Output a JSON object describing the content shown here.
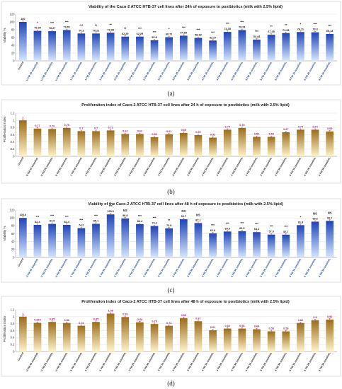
{
  "figure": {
    "panel_labels": [
      "(a)",
      "(b)",
      "(c)",
      "(d)"
    ]
  },
  "chart_data": [
    {
      "type": "bar",
      "title": "Viability of the Caco-2  ATCC HTB-37 cell lines after 24h of exposure to postbiotics (milk with 2.5% lipid)",
      "ylabel": "Viability %",
      "ylim": [
        0,
        120
      ],
      "yticks": [
        0,
        20,
        40,
        60,
        80,
        100,
        120
      ],
      "grid": true,
      "categories": [
        "Control",
        "U FM 10 mmol/mL",
        "U FM 20 mmol/mL",
        "U FM 50 mmol/mL",
        "1 FM 10 mmol/mL",
        "1 FM 20 mmol/mL",
        "1 FM 50 mmol/mL",
        "2 FM 10 mmol/mL",
        "2 FM 20 mmol/mL",
        "2 FM 50 mmol/mL",
        "3 FM 10 mmol/mL",
        "3 FM 20 mmol/mL",
        "3 FM 50 mmol/mL",
        "4 FM 10 mmol/mL",
        "4 FM 20 mmol/mL",
        "4 FM 50 mmol/mL",
        "5 FM 10 mmol/mL",
        "5 FM 20 mmol/mL",
        "5 FM 50 mmol/mL",
        "6 FM 10 mmol/mL",
        "6 FM 20 mmol/mL",
        "6 FM 50 mmol/mL"
      ],
      "value_labels": [
        "100",
        "76.99",
        "76.27",
        "79.01",
        "70.3",
        "70.21",
        "72.08",
        "62.29",
        "62.29",
        "52.8",
        "60.72",
        "64.65",
        "58.93",
        "52.27",
        "74.35",
        "78.91",
        "54.44",
        "67.05",
        "71.33",
        "74.11",
        "73.3",
        "69.14"
      ],
      "values": [
        100,
        76.99,
        76.27,
        79.01,
        70.3,
        70.21,
        72.08,
        62.29,
        62.29,
        52.8,
        60.72,
        64.65,
        58.93,
        52.27,
        74.35,
        78.91,
        54.44,
        67.05,
        71.33,
        74.11,
        73.3,
        69.14
      ],
      "significance": [
        "",
        "*",
        "***",
        "***",
        "***",
        "**",
        "**",
        "**",
        "***",
        "***",
        "*",
        "***",
        "***",
        "***",
        "***",
        "***",
        "***",
        "**",
        "**",
        "*",
        "***",
        "***"
      ],
      "colors": {
        "bar_top": "#1f45b8",
        "bar_bottom": "#d6e6ff",
        "label": "#1a1a1a",
        "tick": "#1a3d8f"
      }
    },
    {
      "type": "bar",
      "title": "Proliferation index of Caco-2 ATCC HTB-37 cell lines after 24 h of exposure to postbiotics  (milk with 2.5% lipid)",
      "ylabel": "Proliferation index",
      "ylim": [
        0,
        1.2
      ],
      "yticks": [
        0,
        0.2,
        0.4,
        0.6,
        0.8,
        1,
        1.2
      ],
      "grid": true,
      "categories": [
        "Control",
        "U FM 10 mmol/mL",
        "U FM 20 mmol/mL",
        "U FM 50 mmol/mL",
        "1 FM 10 mmol/mL",
        "1 FM 20 mmol/mL",
        "1 FM 50 mmol/mL",
        "2 FM 10 mmol/mL",
        "2 FM 20 mmol/mL",
        "2 FM 50 mmol/mL",
        "3 FM 10 mmol/mL",
        "3 FM 20 mmol/mL",
        "3 FM 50 mmol/mL",
        "4 FM 10 mmol/mL",
        "4 FM 20 mmol/mL",
        "4 FM 50 mmol/mL",
        "5 FM 10 mmol/mL",
        "5 FM 20 mmol/mL",
        "5 FM 50 mmol/mL",
        "6 FM 10 mmol/mL",
        "6 FM 20 mmol/mL",
        "6 FM 50 mmol/mL"
      ],
      "value_labels": [
        "1",
        "0.77",
        "0.76",
        "0.79",
        "0.7",
        "0.7",
        "0.72",
        "0.62",
        "0.62",
        "0.53",
        "0.61",
        "0.65",
        "0.59",
        "0.52",
        "0.74",
        "0.79",
        "0.54",
        "0.54",
        "0.67",
        "0.74",
        "0.74",
        "0.69"
      ],
      "values": [
        1,
        0.77,
        0.76,
        0.79,
        0.7,
        0.7,
        0.72,
        0.62,
        0.62,
        0.53,
        0.61,
        0.65,
        0.59,
        0.52,
        0.74,
        0.79,
        0.54,
        0.54,
        0.67,
        0.74,
        0.74,
        0.69
      ],
      "significance": [],
      "colors": {
        "bar_top": "#9b6d1b",
        "bar_bottom": "#fff2c9",
        "label": "#b0186a",
        "tick": "#1a1a1a"
      }
    },
    {
      "type": "bar",
      "title": "Viability of the Caco-2  ATCC HTB-37 cell lines after 48 h of exposure to postbiotics (milk with 2.5% lipid)",
      "ylabel": "Viability %",
      "ylim": [
        0,
        120
      ],
      "yticks": [
        0,
        20,
        40,
        60,
        80,
        100,
        120
      ],
      "grid": true,
      "categories": [
        "Control",
        "U FM 10 mmol/mL",
        "U FM 20 mmol/mL",
        "U FM 50 mmol/mL",
        "1 FM 10 mmol/mL",
        "1 FM 20 mmol/mL",
        "1 FM 50 mmol/mL",
        "2 FM 10 mmol/mL",
        "2 FM 20 mmol/mL",
        "2 FM 50 mmol/mL",
        "3 FM 10 mmol/mL",
        "3 FM 20 mmol/mL",
        "3 FM 50 mmol/mL",
        "4 FM 10 mmol/mL",
        "4 FM 20 mmol/mL",
        "4 FM 50 mmol/mL",
        "5 FM 10 mmol/mL",
        "5 FM 20 mmol/mL",
        "5 FM 50 mmol/mL",
        "6 FM 10 mmol/mL",
        "6 FM 20 mmol/mL",
        "6 FM 50 mmol/mL"
      ],
      "value_labels": [
        "100.0",
        "82.4",
        "84.9",
        "82.4",
        "74.2",
        "85.1",
        "109.0",
        "98.8",
        "84.4",
        "79.4",
        "73.8",
        "96.7",
        "87.1",
        "61.0",
        "65.6",
        "66.5",
        "64.1",
        "57.9",
        "57.7",
        "81.8",
        "90.6",
        "92.7"
      ],
      "values": [
        100,
        82.4,
        84.9,
        82.4,
        74.2,
        85.1,
        109,
        98.8,
        84.4,
        79.4,
        73.8,
        96.7,
        87.1,
        61,
        65.6,
        66.5,
        64.1,
        57.9,
        57.7,
        81.8,
        90.6,
        92.7
      ],
      "significance": [
        "",
        "***",
        "***",
        "***",
        "***",
        "***",
        "***",
        "NS",
        "***",
        "***",
        "**",
        "NS",
        "NS",
        "***",
        "***",
        "***",
        "***",
        "***",
        "***",
        "*",
        "NS",
        "NS"
      ],
      "colors": {
        "bar_top": "#1f45b8",
        "bar_bottom": "#d6e6ff",
        "label": "#1a1a1a",
        "tick": "#1a3d8f"
      }
    },
    {
      "type": "bar",
      "title": "Proliferation index of Caco-2 ATCC HTB-37 cell lines after 48 h of exposure to postbiotics  (milk with 2.5% lipid)",
      "ylabel": "Proliferation index",
      "ylim": [
        0,
        1.2
      ],
      "yticks": [
        0,
        0.2,
        0.4,
        0.6,
        0.8,
        1,
        1.2
      ],
      "grid": true,
      "categories": [
        "Control",
        "U FM 10 mmol/mL",
        "U FM 20 mmol/mL",
        "U FM 50 mmol/mL",
        "1 FM 10 mmol/mL",
        "1 FM 20 mmol/mL",
        "1 FM 50 mmol/mL",
        "2 FM 10 mmol/mL",
        "2 FM 20 mmol/mL",
        "2 FM 50 mmol/mL",
        "3 FM 10 mmol/mL",
        "3 FM 20 mmol/mL",
        "3 FM 50 mmol/mL",
        "4 FM 10 mmol/mL",
        "4 FM 20 mmol/mL",
        "4 FM 50 mmol/mL",
        "5 FM 10 mmol/mL",
        "5 FM 20 mmol/mL",
        "5 FM 50 mmol/mL",
        "6 FM 10 mmol/mL",
        "6 FM 20 mmol/mL",
        "6 FM 50 mmol/mL"
      ],
      "value_labels": [
        "1",
        "0.824",
        "0.85",
        "0.82",
        "0.74",
        "0.85",
        "1.09",
        "0.99",
        "0.84",
        "0.79",
        "0.74",
        "0.96",
        "0.87",
        "0.61",
        "0.66",
        "0.66",
        "0.64",
        "0.58",
        "0.58",
        "0.82",
        "0.9",
        "0.92"
      ],
      "values": [
        1,
        0.824,
        0.85,
        0.82,
        0.74,
        0.85,
        1.09,
        0.99,
        0.84,
        0.79,
        0.74,
        0.96,
        0.87,
        0.61,
        0.66,
        0.66,
        0.64,
        0.58,
        0.58,
        0.82,
        0.9,
        0.92
      ],
      "significance": [],
      "colors": {
        "bar_top": "#9b6d1b",
        "bar_bottom": "#fff2c9",
        "label": "#b0186a",
        "tick": "#1a1a1a"
      }
    }
  ]
}
